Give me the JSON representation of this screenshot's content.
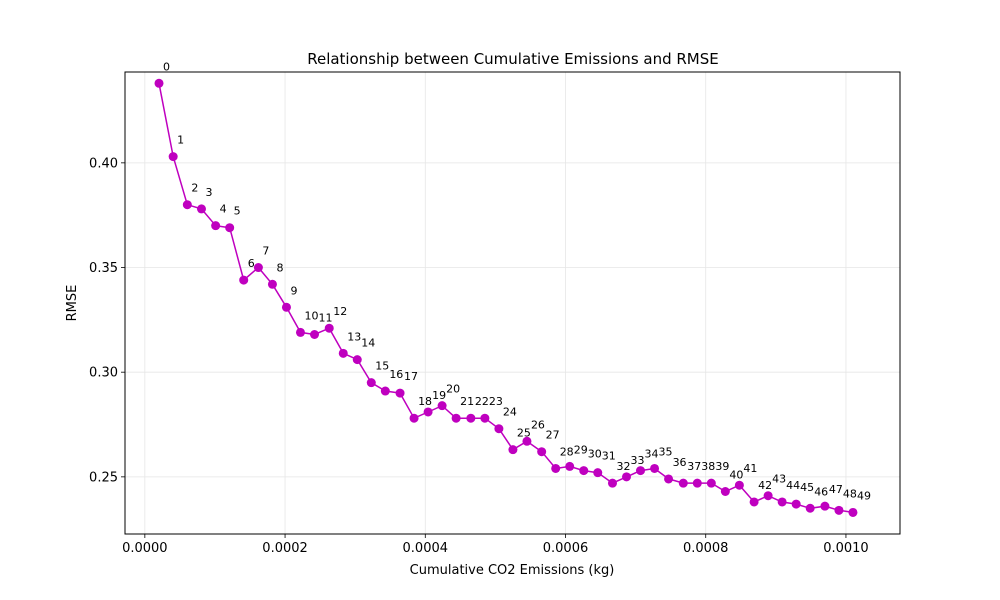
{
  "chart_data": {
    "type": "line",
    "title": "Relationship between Cumulative Emissions and RMSE",
    "xlabel": "Cumulative CO2 Emissions (kg)",
    "ylabel": "RMSE",
    "xlim": [
      -2.83e-05,
      0.0010771
    ],
    "ylim": [
      0.2227,
      0.4434
    ],
    "grid": true,
    "color": "#bf00bf",
    "x_ticks": [
      0.0,
      0.0002,
      0.0004,
      0.0006,
      0.0008,
      0.001
    ],
    "x_tick_labels": [
      "0.0000",
      "0.0002",
      "0.0004",
      "0.0006",
      "0.0008",
      "0.0010"
    ],
    "y_ticks": [
      0.25,
      0.3,
      0.35,
      0.4
    ],
    "y_tick_labels": [
      "0.25",
      "0.30",
      "0.35",
      "0.40"
    ],
    "series": [
      {
        "labels": [
          "0",
          "1",
          "2",
          "3",
          "4",
          "5",
          "6",
          "7",
          "8",
          "9",
          "10",
          "11",
          "12",
          "13",
          "14",
          "15",
          "16",
          "17",
          "18",
          "19",
          "20",
          "21",
          "22",
          "23",
          "24",
          "25",
          "26",
          "27",
          "28",
          "29",
          "30",
          "31",
          "32",
          "33",
          "34",
          "35",
          "36",
          "37",
          "38",
          "39",
          "40",
          "41",
          "42",
          "43",
          "44",
          "45",
          "46",
          "47",
          "48",
          "49"
        ],
        "x": [
          2.02e-05,
          4.04e-05,
          6.06e-05,
          8.08e-05,
          0.000101,
          0.000121,
          0.000141,
          0.000162,
          0.000182,
          0.000202,
          0.000222,
          0.000242,
          0.000263,
          0.000283,
          0.000303,
          0.000323,
          0.000343,
          0.000364,
          0.000384,
          0.000404,
          0.000424,
          0.000444,
          0.000465,
          0.000485,
          0.000505,
          0.000525,
          0.000545,
          0.000566,
          0.000586,
          0.000606,
          0.000626,
          0.000646,
          0.000667,
          0.000687,
          0.000707,
          0.000727,
          0.000747,
          0.000768,
          0.000788,
          0.000808,
          0.000828,
          0.000848,
          0.000869,
          0.000889,
          0.000909,
          0.000929,
          0.000949,
          0.00097,
          0.00099,
          0.00101
        ],
        "values": [
          0.438,
          0.403,
          0.38,
          0.378,
          0.37,
          0.369,
          0.344,
          0.35,
          0.342,
          0.331,
          0.319,
          0.318,
          0.321,
          0.309,
          0.306,
          0.295,
          0.291,
          0.29,
          0.278,
          0.281,
          0.284,
          0.278,
          0.278,
          0.278,
          0.273,
          0.263,
          0.267,
          0.262,
          0.254,
          0.255,
          0.253,
          0.252,
          0.247,
          0.25,
          0.253,
          0.254,
          0.249,
          0.247,
          0.247,
          0.247,
          0.243,
          0.246,
          0.238,
          0.241,
          0.238,
          0.237,
          0.235,
          0.236,
          0.234,
          0.233
        ]
      }
    ]
  }
}
